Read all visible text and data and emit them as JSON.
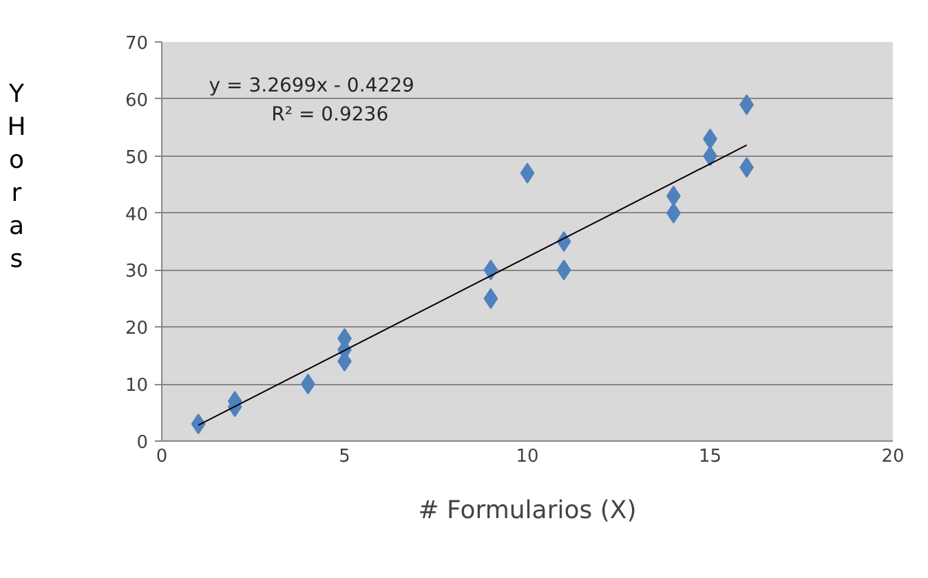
{
  "chart_data": {
    "type": "scatter",
    "xlabel": "# Formularios (X)",
    "ylabel": "Y Horas",
    "x": [
      1,
      2,
      2,
      4,
      5,
      5,
      5,
      9,
      9,
      10,
      11,
      11,
      14,
      14,
      15,
      15,
      16,
      16
    ],
    "series": [
      {
        "color": "#4f81bd",
        "values": [
          3,
          7,
          6,
          10,
          18,
          16,
          14,
          30,
          25,
          47,
          35,
          30,
          43,
          40,
          53,
          50,
          59,
          48
        ]
      },
      {
        "type": "line",
        "color": "#000000",
        "x": [
          1,
          16
        ],
        "values": [
          2.8,
          51.9
        ],
        "marker": "none"
      }
    ],
    "marker": "diamond",
    "grid": "y",
    "xlim": [
      0,
      20
    ],
    "xticks": [
      0,
      5,
      10,
      15,
      20
    ],
    "ylim": [
      0,
      70
    ],
    "yticks": [
      0,
      10,
      20,
      30,
      40,
      50,
      60,
      70
    ],
    "annotations": [
      "y = 3.2699x - 0.4229",
      "R² = 0.9236"
    ]
  }
}
